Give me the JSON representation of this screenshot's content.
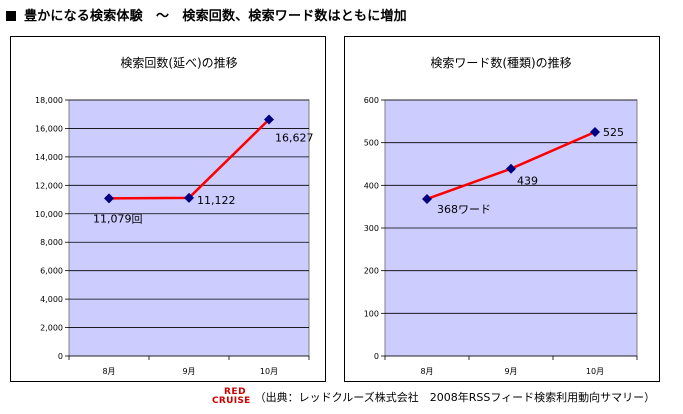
{
  "headline": "豊かになる検索体験　～　検索回数、検索ワード数はともに増加",
  "footer": {
    "logo_line1": "RED",
    "logo_line2": "CRUISE",
    "source": "（出典：レッドクルーズ株式会社　2008年RSSフィード検索利用動向サマリー）"
  },
  "colors": {
    "plot_bg": "#ccccff",
    "line": "#ff0000",
    "marker": "#000080",
    "grid": "#000000"
  },
  "chart_data": [
    {
      "type": "line",
      "title": "検索回数(延べ)の推移",
      "categories": [
        "8月",
        "9月",
        "10月"
      ],
      "values": [
        11079,
        11122,
        16627
      ],
      "data_labels": [
        "11,079回",
        "11,122",
        "16,627"
      ],
      "ylim": [
        0,
        18000
      ],
      "yticks": [
        0,
        2000,
        4000,
        6000,
        8000,
        10000,
        12000,
        14000,
        16000,
        18000
      ],
      "ytick_labels": [
        "0",
        "2,000",
        "4,000",
        "6,000",
        "8,000",
        "10,000",
        "12,000",
        "14,000",
        "16,000",
        "18,000"
      ],
      "grid": true
    },
    {
      "type": "line",
      "title": "検索ワード数(種類)の推移",
      "categories": [
        "8月",
        "9月",
        "10月"
      ],
      "values": [
        368,
        439,
        525
      ],
      "data_labels": [
        "368ワード",
        "439",
        "525"
      ],
      "ylim": [
        0,
        600
      ],
      "yticks": [
        0,
        100,
        200,
        300,
        400,
        500,
        600
      ],
      "ytick_labels": [
        "0",
        "100",
        "200",
        "300",
        "400",
        "500",
        "600"
      ],
      "grid": true
    }
  ]
}
